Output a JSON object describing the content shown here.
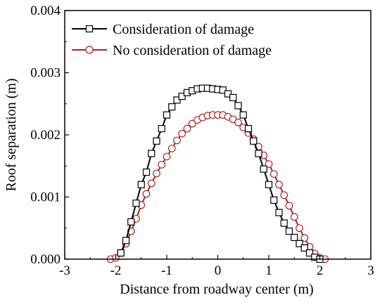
{
  "chart_data": {
    "type": "line",
    "xlabel": "Distance from roadway center (m)",
    "ylabel": "Roof separation (m)",
    "xlim": [
      -3,
      3
    ],
    "ylim": [
      0,
      0.004
    ],
    "x_ticks": [
      "-3",
      "-2",
      "-1",
      "0",
      "1",
      "2",
      "3"
    ],
    "y_ticks": [
      "0.000",
      "0.001",
      "0.002",
      "0.003",
      "0.004"
    ],
    "legend_position": "top-left",
    "grid": false,
    "series": [
      {
        "name": "Consideration of damage",
        "color": "#000000",
        "marker": "square",
        "x": [
          -1.9,
          -1.8,
          -1.7,
          -1.6,
          -1.5,
          -1.4,
          -1.3,
          -1.2,
          -1.1,
          -1.0,
          -0.9,
          -0.8,
          -0.7,
          -0.6,
          -0.5,
          -0.4,
          -0.3,
          -0.2,
          -0.1,
          0.0,
          0.1,
          0.2,
          0.3,
          0.4,
          0.5,
          0.6,
          0.7,
          0.8,
          0.9,
          1.0,
          1.1,
          1.2,
          1.3,
          1.4,
          1.5,
          1.6,
          1.7,
          1.8,
          1.9,
          2.0
        ],
        "y": [
          0.0001,
          0.0003,
          0.0006,
          0.0009,
          0.0012,
          0.0014,
          0.0017,
          0.0019,
          0.0021,
          0.00232,
          0.00245,
          0.00256,
          0.00262,
          0.00268,
          0.00271,
          0.00274,
          0.00275,
          0.00275,
          0.00274,
          0.00273,
          0.00272,
          0.00266,
          0.0026,
          0.00247,
          0.00232,
          0.0021,
          0.0019,
          0.0017,
          0.00145,
          0.0012,
          0.00095,
          0.00075,
          0.00058,
          0.00045,
          0.00035,
          0.00025,
          0.00018,
          0.0001,
          3e-05,
          0.0
        ]
      },
      {
        "name": "No consideration of damage",
        "color": "#b22222",
        "marker": "circle",
        "x": [
          -2.1,
          -2.0,
          -1.9,
          -1.8,
          -1.7,
          -1.6,
          -1.5,
          -1.4,
          -1.3,
          -1.2,
          -1.1,
          -1.0,
          -0.9,
          -0.8,
          -0.7,
          -0.6,
          -0.5,
          -0.4,
          -0.3,
          -0.2,
          -0.1,
          0.0,
          0.1,
          0.2,
          0.3,
          0.4,
          0.5,
          0.6,
          0.7,
          0.8,
          0.9,
          1.0,
          1.1,
          1.2,
          1.3,
          1.4,
          1.5,
          1.6,
          1.7,
          1.8,
          1.9,
          2.0,
          2.1
        ],
        "y": [
          0.0,
          2e-05,
          0.0001,
          0.00025,
          0.00045,
          0.00065,
          0.00087,
          0.00105,
          0.00122,
          0.00138,
          0.00152,
          0.00165,
          0.00178,
          0.00191,
          0.00202,
          0.0021,
          0.00218,
          0.00224,
          0.00228,
          0.00231,
          0.00232,
          0.00232,
          0.00232,
          0.00229,
          0.00225,
          0.0022,
          0.00212,
          0.00203,
          0.00193,
          0.00181,
          0.00167,
          0.00153,
          0.00137,
          0.0012,
          0.00103,
          0.00086,
          0.00068,
          0.0005,
          0.00034,
          0.0002,
          9e-05,
          2e-05,
          0.0
        ]
      }
    ]
  }
}
